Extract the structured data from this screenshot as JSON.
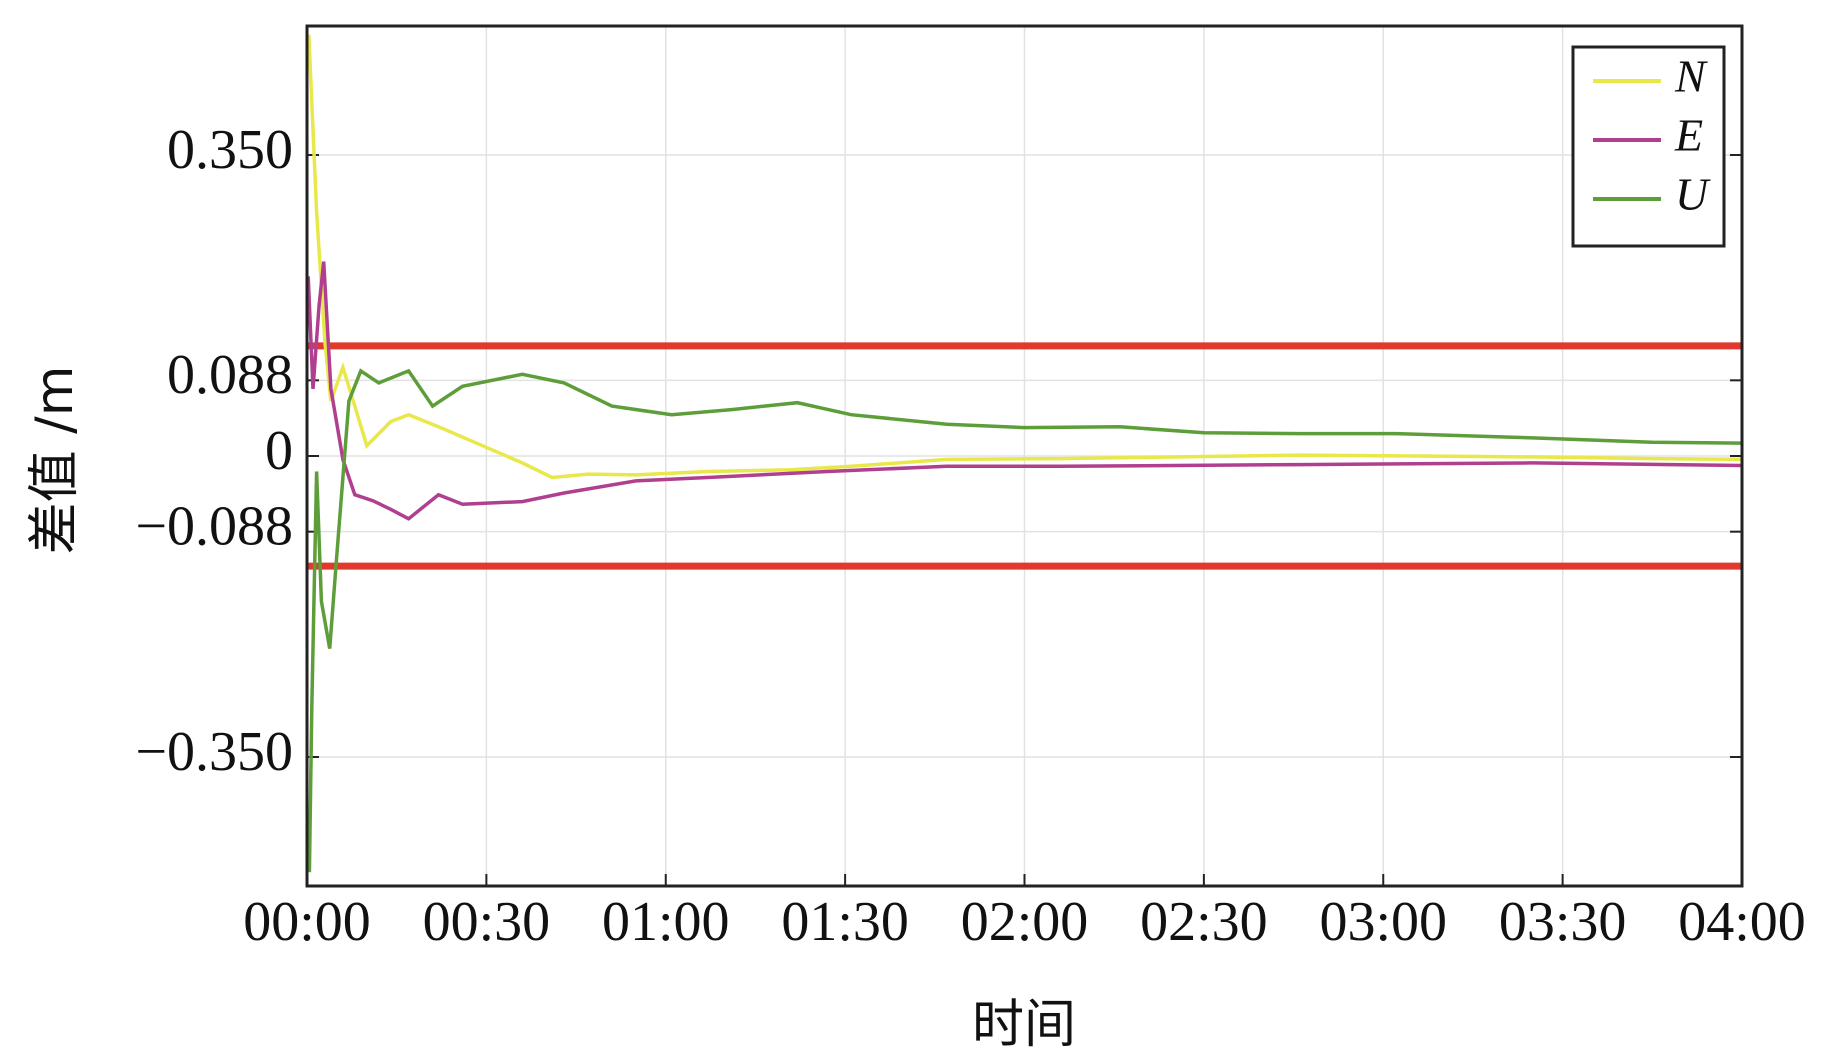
{
  "chart_data": {
    "type": "line",
    "xlabel": "时间",
    "ylabel": "差值 /m",
    "xlim": [
      0,
      240
    ],
    "xticks": [
      {
        "value": 0,
        "label": "00:00"
      },
      {
        "value": 30,
        "label": "00:30"
      },
      {
        "value": 60,
        "label": "01:00"
      },
      {
        "value": 90,
        "label": "01:30"
      },
      {
        "value": 120,
        "label": "02:00"
      },
      {
        "value": 150,
        "label": "02:30"
      },
      {
        "value": 180,
        "label": "03:00"
      },
      {
        "value": 210,
        "label": "03:30"
      },
      {
        "value": 240,
        "label": "04:00"
      }
    ],
    "ylim": [
      -0.5,
      0.5
    ],
    "yticks": [
      {
        "value": -0.35,
        "label": "−0.350"
      },
      {
        "value": -0.088,
        "label": "−0.088"
      },
      0,
      0.088,
      {
        "value": 0.35,
        "label": "0.350"
      }
    ],
    "grid": true,
    "legend_position": "upper right",
    "reference_lines": [
      {
        "value": 0.128,
        "color": "#e03a2e"
      },
      {
        "value": -0.128,
        "color": "#e03a2e"
      }
    ],
    "series": [
      {
        "name": "N",
        "color": "#e8e84a",
        "x": [
          0.3,
          1.6,
          3,
          4,
          6,
          8,
          10,
          14,
          17,
          22,
          28,
          36,
          41,
          47,
          55,
          67,
          81,
          91,
          107,
          126,
          146,
          166,
          186,
          205,
          225,
          240
        ],
        "values": [
          0.49,
          0.284,
          0.133,
          0.064,
          0.103,
          0.058,
          0.012,
          0.04,
          0.048,
          0.034,
          0.016,
          -0.008,
          -0.025,
          -0.021,
          -0.022,
          -0.018,
          -0.016,
          -0.012,
          -0.004,
          -0.003,
          -0.001,
          0.001,
          0,
          -0.001,
          -0.003,
          -0.004
        ]
      },
      {
        "name": "E",
        "color": "#b0408f",
        "x": [
          0.2,
          1,
          2,
          2.8,
          4,
          6,
          8,
          11,
          14,
          17,
          22,
          26,
          36,
          43,
          55,
          67,
          87,
          107,
          126,
          166,
          205,
          240
        ],
        "values": [
          0.209,
          0.078,
          0.174,
          0.226,
          0.078,
          -0.004,
          -0.045,
          -0.052,
          -0.062,
          -0.073,
          -0.045,
          -0.056,
          -0.053,
          -0.043,
          -0.029,
          -0.025,
          -0.018,
          -0.012,
          -0.012,
          -0.01,
          -0.008,
          -0.011
        ]
      },
      {
        "name": "U",
        "color": "#5e9e3a",
        "x": [
          0.4,
          0.8,
          1.6,
          2.4,
          3.8,
          5,
          7,
          9,
          12,
          17,
          21,
          26,
          36,
          43,
          51,
          61,
          71,
          82,
          91,
          107,
          120,
          136,
          150,
          166,
          182,
          205,
          225,
          240
        ],
        "values": [
          -0.484,
          -0.292,
          -0.018,
          -0.169,
          -0.224,
          -0.114,
          0.064,
          0.099,
          0.085,
          0.099,
          0.058,
          0.081,
          0.095,
          0.085,
          0.058,
          0.048,
          0.054,
          0.062,
          0.048,
          0.037,
          0.033,
          0.034,
          0.027,
          0.026,
          0.026,
          0.021,
          0.016,
          0.015
        ]
      }
    ]
  }
}
